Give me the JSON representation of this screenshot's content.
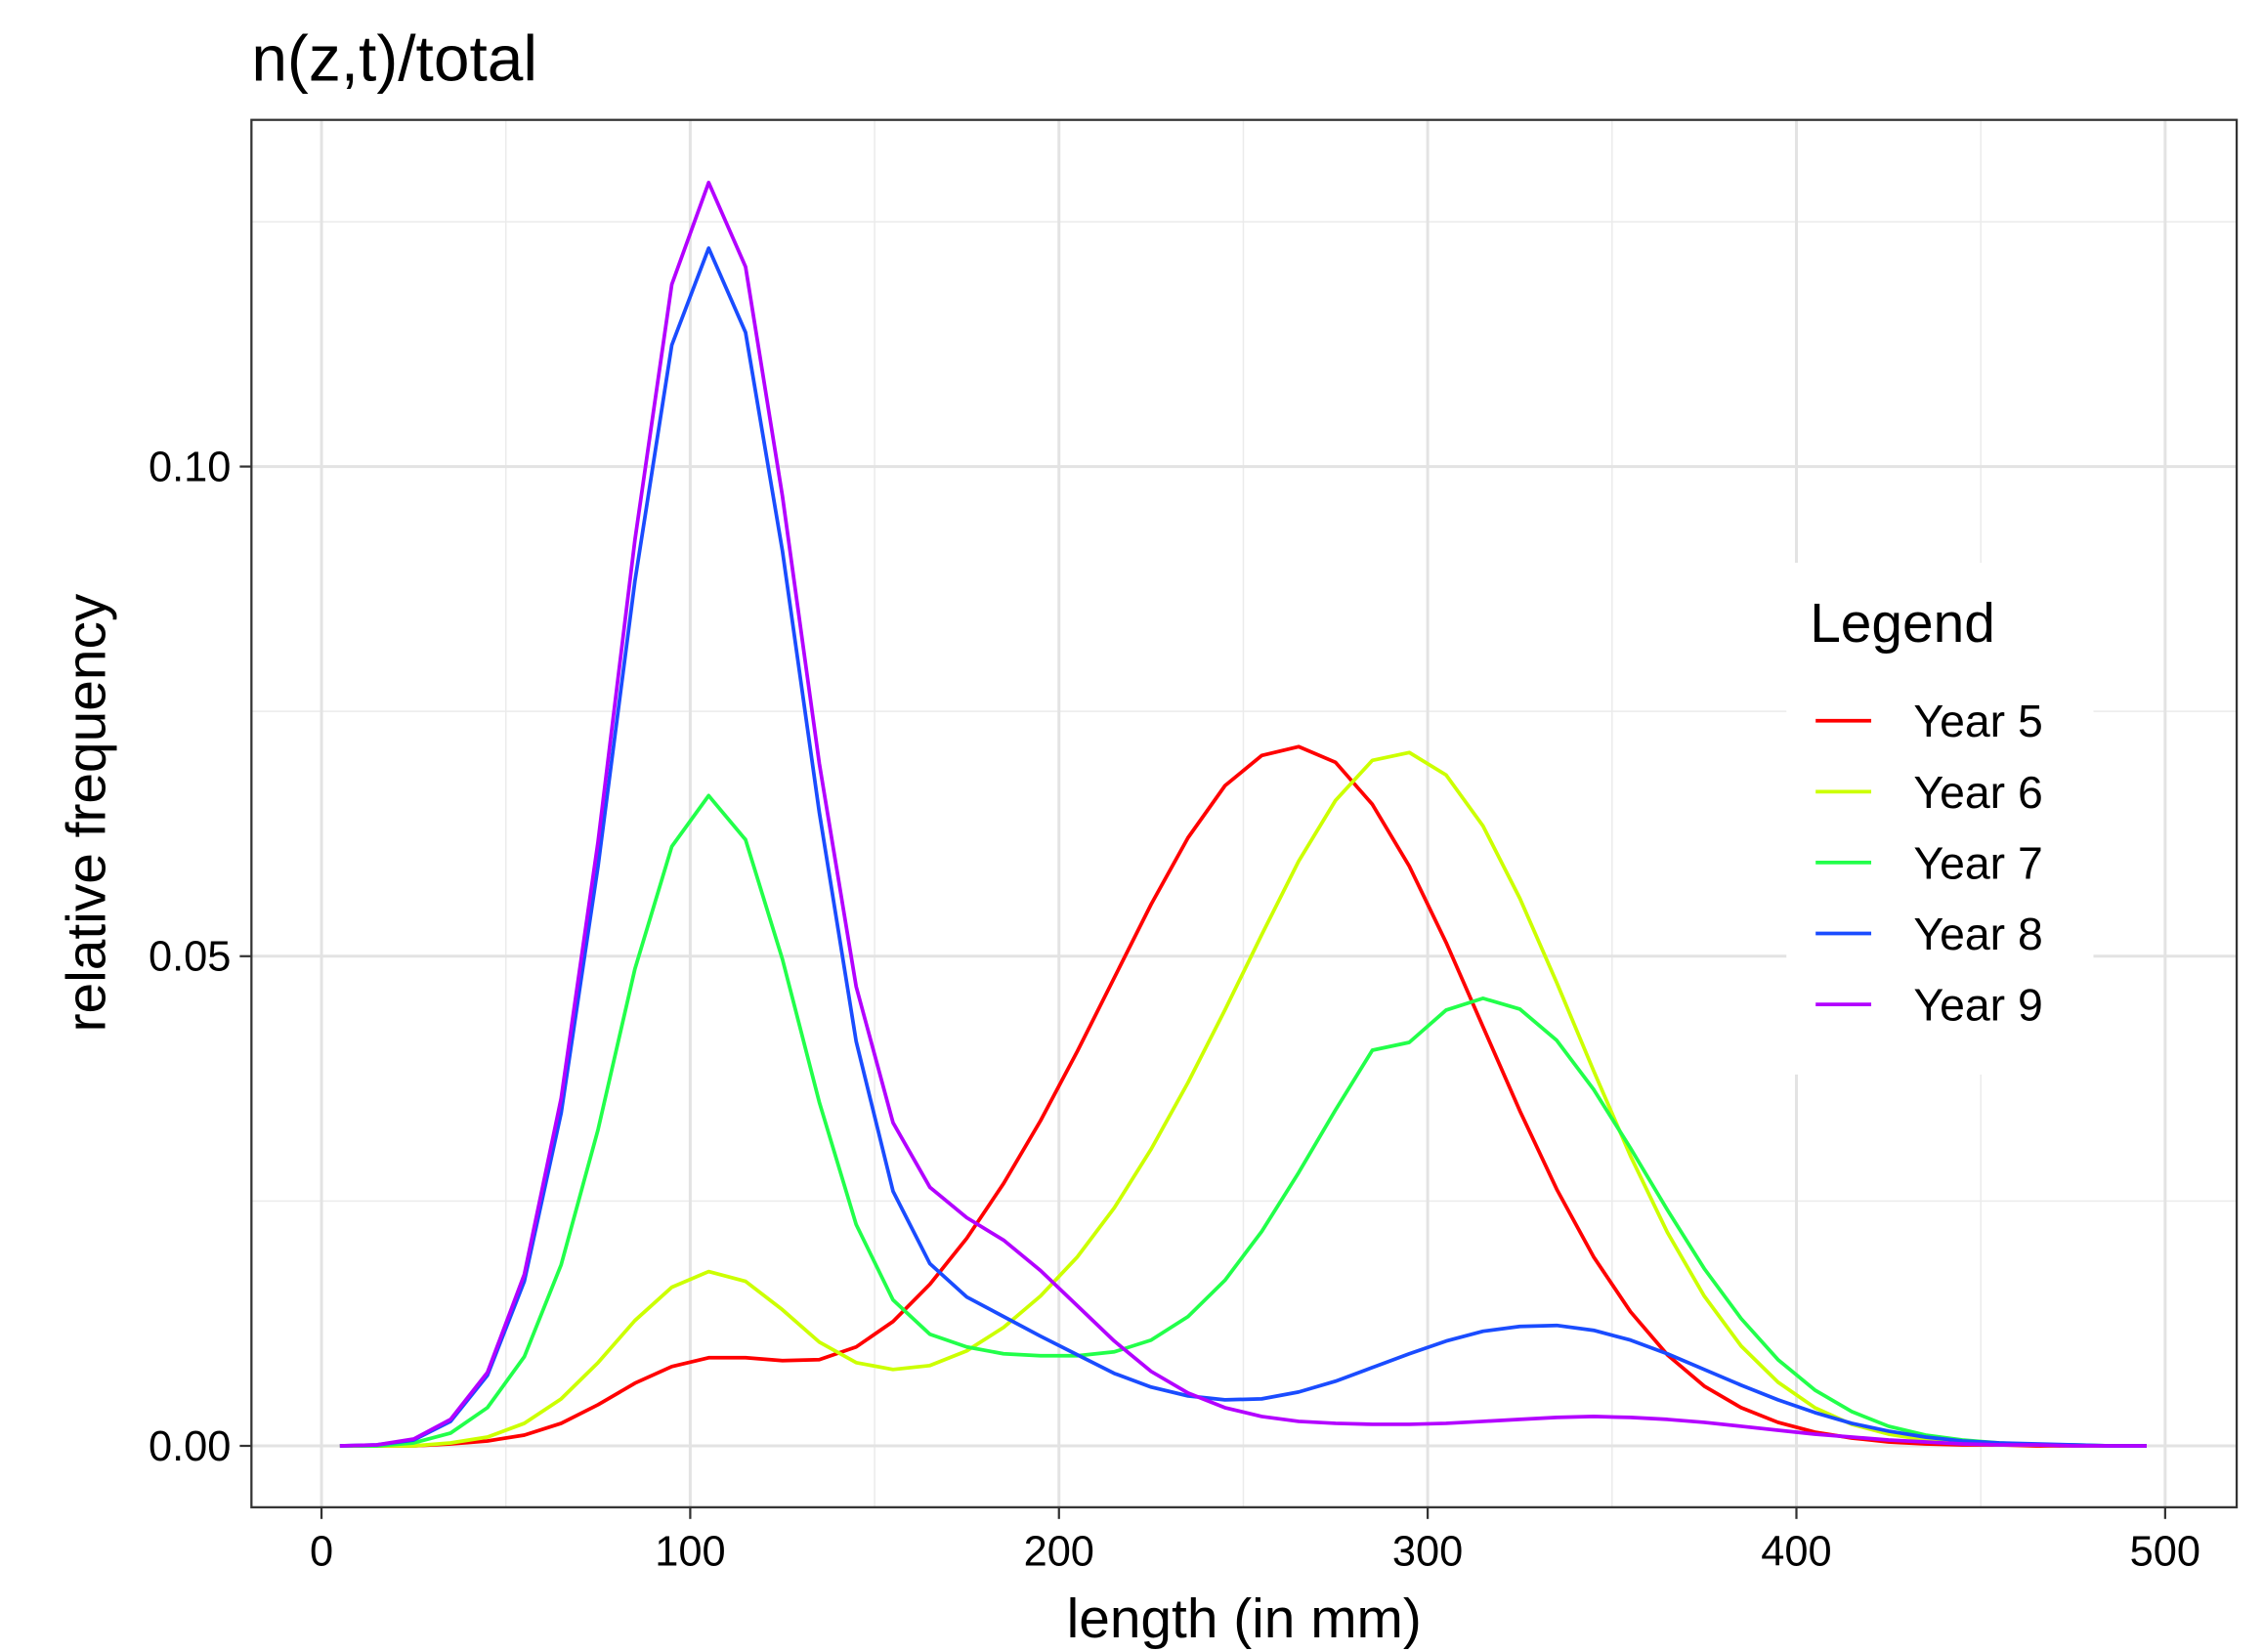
{
  "chart_data": {
    "type": "line",
    "title": "n(z,t)/total",
    "x_label": "length (in mm)",
    "y_label": "relative frequency",
    "x": [
      5,
      15,
      25,
      35,
      45,
      55,
      65,
      75,
      85,
      95,
      105,
      115,
      125,
      135,
      145,
      155,
      165,
      175,
      185,
      195,
      205,
      215,
      225,
      235,
      245,
      255,
      265,
      275,
      285,
      295,
      305,
      315,
      325,
      335,
      345,
      355,
      365,
      375,
      385,
      395,
      405,
      415,
      425,
      435,
      445,
      455,
      465,
      475,
      485,
      495
    ],
    "series": [
      {
        "name": "Year 5",
        "color": "#ff0000",
        "values": [
          0,
          0,
          0,
          0.0002,
          0.0005,
          0.0011,
          0.0023,
          0.0042,
          0.0064,
          0.0081,
          0.009,
          0.009,
          0.0087,
          0.0088,
          0.0101,
          0.0127,
          0.0165,
          0.0212,
          0.0268,
          0.0332,
          0.0403,
          0.0478,
          0.0553,
          0.0621,
          0.0674,
          0.0705,
          0.0714,
          0.0698,
          0.0655,
          0.0592,
          0.0514,
          0.0428,
          0.0342,
          0.0262,
          0.0193,
          0.0137,
          0.0093,
          0.0061,
          0.0039,
          0.0024,
          0.0014,
          0.0008,
          0.0004,
          0.0002,
          0.0001,
          0.0001,
          0,
          0,
          0,
          0
        ]
      },
      {
        "name": "Year 6",
        "color": "#ccff00",
        "values": [
          0,
          0,
          0,
          0.0003,
          0.0009,
          0.0023,
          0.0048,
          0.0085,
          0.0128,
          0.0162,
          0.0178,
          0.0168,
          0.0139,
          0.0106,
          0.0085,
          0.0078,
          0.0082,
          0.0097,
          0.0121,
          0.0153,
          0.0193,
          0.0243,
          0.0303,
          0.0371,
          0.0445,
          0.0522,
          0.0597,
          0.0659,
          0.07,
          0.0708,
          0.0685,
          0.0633,
          0.0559,
          0.0473,
          0.0383,
          0.0296,
          0.0218,
          0.0153,
          0.0102,
          0.0065,
          0.0039,
          0.0022,
          0.0012,
          0.0006,
          0.0003,
          0.0001,
          0.0001,
          0,
          0,
          0
        ]
      },
      {
        "name": "Year 7",
        "color": "#22ff4a",
        "values": [
          0,
          0,
          0.0003,
          0.0013,
          0.0039,
          0.0091,
          0.0185,
          0.0323,
          0.0487,
          0.0612,
          0.0664,
          0.0619,
          0.0497,
          0.0351,
          0.0226,
          0.0149,
          0.0114,
          0.0101,
          0.0094,
          0.0092,
          0.0092,
          0.0096,
          0.0108,
          0.0132,
          0.0169,
          0.0219,
          0.0279,
          0.0343,
          0.0404,
          0.0412,
          0.0445,
          0.0457,
          0.0446,
          0.0414,
          0.0364,
          0.0304,
          0.0241,
          0.0181,
          0.013,
          0.0088,
          0.0057,
          0.0035,
          0.002,
          0.0011,
          0.0006,
          0.0003,
          0.0001,
          0.0001,
          0,
          0
        ]
      },
      {
        "name": "Year 8",
        "color": "#1a4cff",
        "values": [
          0,
          0.0001,
          0.0006,
          0.0025,
          0.0072,
          0.0168,
          0.034,
          0.0592,
          0.0883,
          0.1124,
          0.1223,
          0.1137,
          0.0914,
          0.0647,
          0.0413,
          0.026,
          0.0186,
          0.0152,
          0.0132,
          0.0112,
          0.0093,
          0.0074,
          0.006,
          0.0051,
          0.0047,
          0.0048,
          0.0055,
          0.0066,
          0.008,
          0.0094,
          0.0107,
          0.0117,
          0.0122,
          0.0123,
          0.0118,
          0.0108,
          0.0094,
          0.0078,
          0.0062,
          0.0047,
          0.0034,
          0.0023,
          0.0015,
          0.0009,
          0.0005,
          0.0003,
          0.0002,
          0.0001,
          0,
          0
        ]
      },
      {
        "name": "Year 9",
        "color": "#b300ff",
        "values": [
          0,
          0.0001,
          0.0007,
          0.0027,
          0.0075,
          0.0175,
          0.0355,
          0.0617,
          0.0925,
          0.1186,
          0.129,
          0.1204,
          0.097,
          0.0697,
          0.0469,
          0.033,
          0.0264,
          0.0233,
          0.021,
          0.0179,
          0.0143,
          0.0107,
          0.0076,
          0.0054,
          0.0039,
          0.003,
          0.0025,
          0.0023,
          0.0022,
          0.0022,
          0.0023,
          0.0025,
          0.0027,
          0.0029,
          0.003,
          0.0029,
          0.0027,
          0.0024,
          0.002,
          0.0016,
          0.0012,
          0.0009,
          0.0006,
          0.0004,
          0.0002,
          0.0001,
          0.0001,
          0,
          0,
          0
        ]
      }
    ],
    "legend_title": "Legend",
    "legend_position": "right",
    "xlim": [
      -19,
      519.4
    ],
    "ylim": [
      -0.00627,
      0.1354
    ],
    "xticks": [
      0,
      100,
      200,
      300,
      400,
      500
    ],
    "yticks": [
      {
        "value": 0,
        "label": "0.00"
      },
      0.05,
      {
        "value": 0.1,
        "label": "0.10"
      }
    ],
    "x_minor_grid": [
      50,
      150,
      250,
      350,
      450
    ],
    "y_minor_grid": [
      0.025,
      0.075,
      0.125
    ],
    "grid": true
  }
}
